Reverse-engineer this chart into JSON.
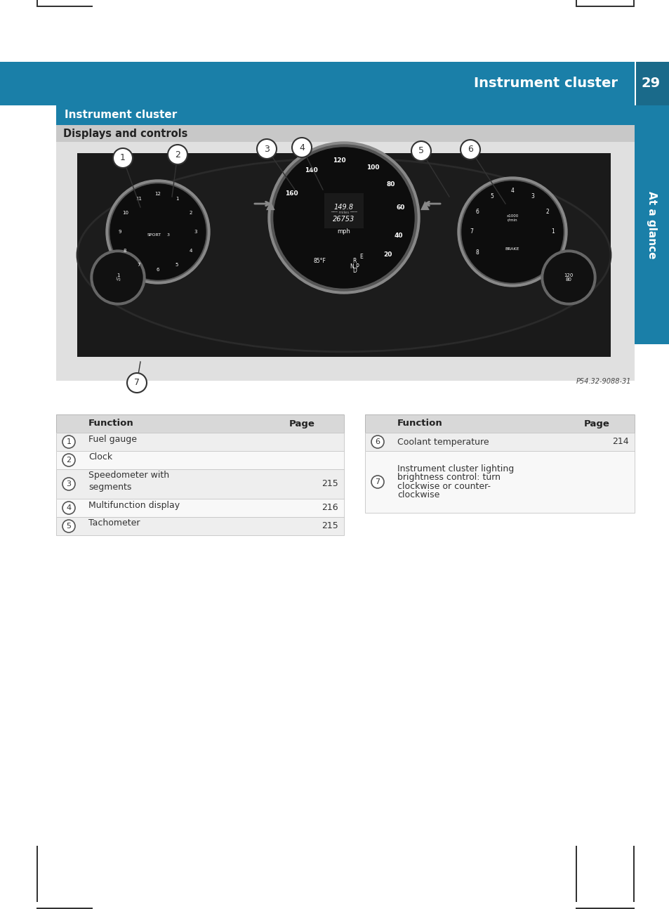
{
  "page_title": "Instrument cluster",
  "page_number": "29",
  "section_title": "Instrument cluster",
  "subsection_title": "Displays and controls",
  "sidebar_label": "At a glance",
  "header_bg": "#1a7fa8",
  "section_bg": "#1a7fa8",
  "subsection_bg": "#c8c8c8",
  "sidebar_bg": "#1a7fa8",
  "table_header_bg": "#d8d8d8",
  "table_row_alt_bg": "#eeeeee",
  "table_row_bg": "#f8f8f8",
  "image_placeholder_bg": "#888888",
  "ref_code": "P54.32-9088-31",
  "left_table": {
    "headers": [
      "",
      "Function",
      "Page"
    ],
    "rows": [
      {
        "num": "1",
        "function": "Fuel gauge",
        "page": ""
      },
      {
        "num": "2",
        "function": "Clock",
        "page": ""
      },
      {
        "num": "3",
        "function": "Speedometer with\nsegments",
        "page": "215"
      },
      {
        "num": "4",
        "function": "Multifunction display",
        "page": "216"
      },
      {
        "num": "5",
        "function": "Tachometer",
        "page": "215"
      }
    ]
  },
  "right_table": {
    "headers": [
      "",
      "Function",
      "Page"
    ],
    "rows": [
      {
        "num": "6",
        "function": "Coolant temperature",
        "page": "214"
      },
      {
        "num": "7",
        "function": "Instrument cluster lighting\nbrightness control: turn\nclockwise or counter-\nclockwise",
        "page": ""
      }
    ]
  }
}
